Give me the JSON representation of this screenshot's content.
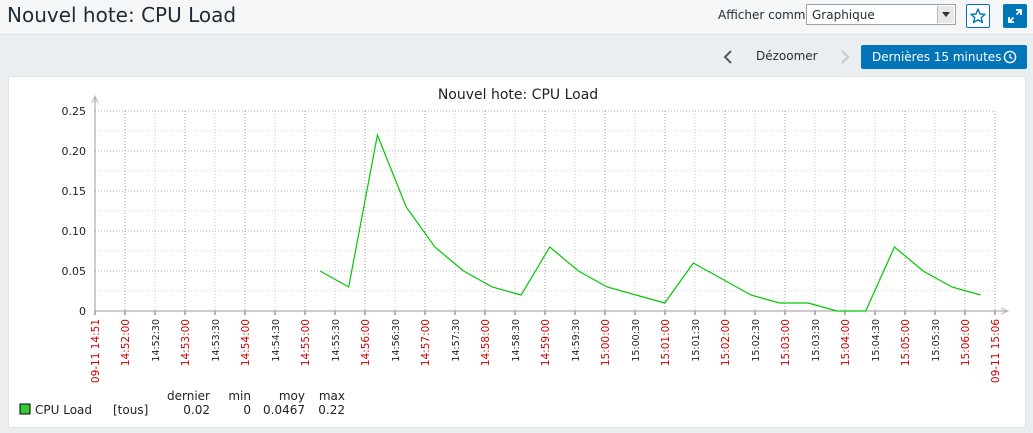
{
  "header": {
    "title": "Nouvel hote: CPU Load",
    "show_as_label": "Afficher comme",
    "show_as_value": "Graphique"
  },
  "time_controls": {
    "zoom_out": "Dézoomer",
    "period": "Dernières 15 minutes"
  },
  "colors": {
    "accent": "#0275b8",
    "series": "#00c800",
    "legend_swatch": "#33cc33",
    "red_tick": "#cc0000"
  },
  "icons": [
    "star-icon",
    "fullscreen-icon",
    "chevron-left-icon",
    "chevron-right-icon",
    "clock-icon",
    "dropdown-arrow-icon"
  ],
  "chart_data": {
    "type": "line",
    "title": "Nouvel hote: CPU Load",
    "ylim": [
      0,
      0.25
    ],
    "yticks": [
      "0",
      "0.05",
      "0.10",
      "0.15",
      "0.20",
      "0.25"
    ],
    "xticks": [
      {
        "label": "09-11 14:51",
        "red": true
      },
      {
        "label": "14:52:00",
        "red": true
      },
      {
        "label": "14:52:30",
        "red": false
      },
      {
        "label": "14:53:00",
        "red": true
      },
      {
        "label": "14:53:30",
        "red": false
      },
      {
        "label": "14:54:00",
        "red": true
      },
      {
        "label": "14:54:30",
        "red": false
      },
      {
        "label": "14:55:00",
        "red": true
      },
      {
        "label": "14:55:30",
        "red": false
      },
      {
        "label": "14:56:00",
        "red": true
      },
      {
        "label": "14:56:30",
        "red": false
      },
      {
        "label": "14:57:00",
        "red": true
      },
      {
        "label": "14:57:30",
        "red": false
      },
      {
        "label": "14:58:00",
        "red": true
      },
      {
        "label": "14:58:30",
        "red": false
      },
      {
        "label": "14:59:00",
        "red": true
      },
      {
        "label": "14:59:30",
        "red": false
      },
      {
        "label": "15:00:00",
        "red": true
      },
      {
        "label": "15:00:30",
        "red": false
      },
      {
        "label": "15:01:00",
        "red": true
      },
      {
        "label": "15:01:30",
        "red": false
      },
      {
        "label": "15:02:00",
        "red": true
      },
      {
        "label": "15:02:30",
        "red": false
      },
      {
        "label": "15:03:00",
        "red": true
      },
      {
        "label": "15:03:30",
        "red": false
      },
      {
        "label": "15:04:00",
        "red": true
      },
      {
        "label": "15:04:30",
        "red": false
      },
      {
        "label": "15:05:00",
        "red": true
      },
      {
        "label": "15:05:30",
        "red": false
      },
      {
        "label": "15:06:00",
        "red": true
      },
      {
        "label": "09-11 15:06",
        "red": true
      }
    ],
    "series": [
      {
        "name": "CPU Load",
        "points": [
          [
            "14:55:00",
            0.05
          ],
          [
            "14:55:30",
            0.03
          ],
          [
            "14:56:00",
            0.22
          ],
          [
            "14:56:30",
            0.13
          ],
          [
            "14:57:00",
            0.08
          ],
          [
            "14:57:30",
            0.05
          ],
          [
            "14:58:00",
            0.03
          ],
          [
            "14:58:30",
            0.02
          ],
          [
            "14:59:00",
            0.08
          ],
          [
            "14:59:30",
            0.05
          ],
          [
            "15:00:00",
            0.03
          ],
          [
            "15:00:30",
            0.02
          ],
          [
            "15:01:00",
            0.01
          ],
          [
            "15:01:30",
            0.06
          ],
          [
            "15:02:00",
            0.04
          ],
          [
            "15:02:30",
            0.02
          ],
          [
            "15:03:00",
            0.01
          ],
          [
            "15:03:30",
            0.01
          ],
          [
            "15:04:00",
            0.0
          ],
          [
            "15:04:30",
            0.0
          ],
          [
            "15:05:00",
            0.08
          ],
          [
            "15:05:30",
            0.05
          ],
          [
            "15:06:00",
            0.03
          ],
          [
            "15:06:30",
            0.02
          ]
        ]
      }
    ],
    "legend": {
      "headers": [
        "dernier",
        "min",
        "moy",
        "max"
      ],
      "rows": [
        {
          "name": "CPU Load",
          "func": "[tous]",
          "values": [
            "0.02",
            "0",
            "0.0467",
            "0.22"
          ]
        }
      ]
    }
  }
}
